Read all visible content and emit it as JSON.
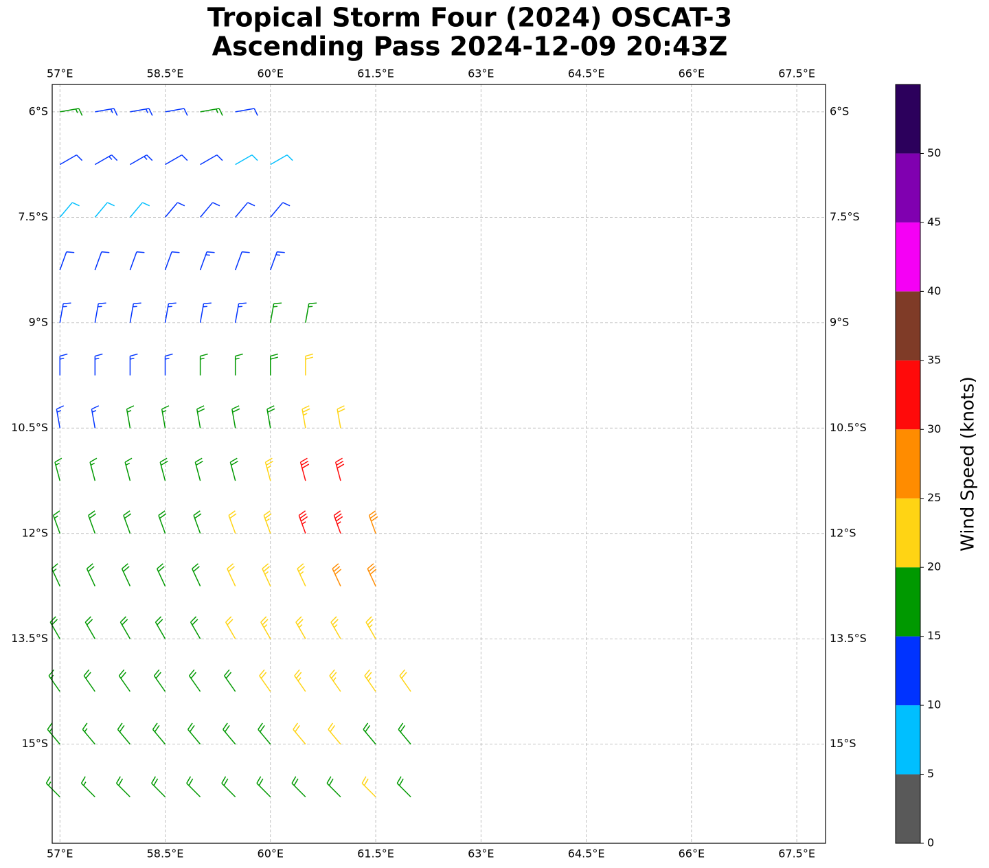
{
  "chart_data": {
    "type": "barbs",
    "title_lines": [
      "Tropical Storm Four (2024) OSCAT-3",
      "Ascending Pass 2024-12-09 20:43Z"
    ],
    "xlim": [
      56.89,
      67.91
    ],
    "ylim": [
      -16.41,
      -5.61
    ],
    "xticks": [
      {
        "value": 57,
        "label": "57°E"
      },
      {
        "value": 58.5,
        "label": "58.5°E"
      },
      {
        "value": 60,
        "label": "60°E"
      },
      {
        "value": 61.5,
        "label": "61.5°E"
      },
      {
        "value": 63,
        "label": "63°E"
      },
      {
        "value": 64.5,
        "label": "64.5°E"
      },
      {
        "value": 66,
        "label": "66°E"
      },
      {
        "value": 67.5,
        "label": "67.5°E"
      }
    ],
    "yticks": [
      {
        "value": -6,
        "label": "6°S"
      },
      {
        "value": -7.5,
        "label": "7.5°S"
      },
      {
        "value": -9,
        "label": "9°S"
      },
      {
        "value": -10.5,
        "label": "10.5°S"
      },
      {
        "value": -12,
        "label": "12°S"
      },
      {
        "value": -13.5,
        "label": "13.5°S"
      },
      {
        "value": -15,
        "label": "15°S"
      }
    ],
    "grid": true,
    "colorbar": {
      "label": "Wind Speed (knots)",
      "bounds": [
        0,
        5,
        10,
        15,
        20,
        25,
        30,
        35,
        40,
        45,
        50,
        55
      ],
      "colors": [
        "#595959",
        "#00bfff",
        "#0033ff",
        "#009900",
        "#ffd414",
        "#ff8c00",
        "#ff0a0a",
        "#7f3b27",
        "#f500f5",
        "#8000b0",
        "#2c005c"
      ],
      "ticks": [
        0,
        5,
        10,
        15,
        20,
        25,
        30,
        35,
        40,
        45,
        50
      ]
    },
    "barbs": [
      {
        "lat": -6,
        "lon": [
          57,
          57.5,
          58,
          58.5,
          59,
          59.5
        ],
        "speed": [
          17,
          13,
          13,
          12,
          17,
          11
        ],
        "direction": [
          80,
          80,
          80,
          80,
          80,
          80
        ]
      },
      {
        "lat": -6.75,
        "lon": [
          57,
          57.5,
          58,
          58.5,
          59,
          59.5,
          60
        ],
        "speed": [
          12,
          13,
          13,
          12,
          11,
          8,
          8
        ],
        "direction": [
          60,
          60,
          60,
          60,
          60,
          60,
          60
        ]
      },
      {
        "lat": -7.5,
        "lon": [
          57,
          57.5,
          58,
          58.5,
          59,
          59.5,
          60
        ],
        "speed": [
          8,
          8,
          8,
          12,
          12,
          11,
          12
        ],
        "direction": [
          40,
          40,
          40,
          40,
          40,
          40,
          40
        ]
      },
      {
        "lat": -8.25,
        "lon": [
          57,
          57.5,
          58,
          58.5,
          59,
          59.5,
          60
        ],
        "speed": [
          12,
          12,
          12,
          12,
          13,
          12,
          13
        ],
        "direction": [
          20,
          20,
          20,
          20,
          20,
          20,
          20
        ]
      },
      {
        "lat": -9,
        "lon": [
          57,
          57.5,
          58,
          58.5,
          59,
          59.5,
          60,
          60.5
        ],
        "speed": [
          13,
          13,
          13,
          13,
          14,
          14,
          17,
          17
        ],
        "direction": [
          10,
          10,
          10,
          10,
          10,
          10,
          10,
          10
        ]
      },
      {
        "lat": -9.75,
        "lon": [
          57,
          57.5,
          58,
          58.5,
          59,
          59.5,
          60,
          60.5
        ],
        "speed": [
          14,
          14,
          14,
          13,
          16,
          17,
          18,
          22
        ],
        "direction": [
          0,
          0,
          0,
          0,
          0,
          0,
          0,
          0
        ]
      },
      {
        "lat": -10.5,
        "lon": [
          57,
          57.5,
          58,
          58.5,
          59,
          59.5,
          60,
          60.5,
          61
        ],
        "speed": [
          13,
          13,
          17,
          17,
          18,
          18,
          19,
          23,
          22
        ],
        "direction": [
          350,
          350,
          350,
          350,
          350,
          350,
          350,
          350,
          350
        ]
      },
      {
        "lat": -11.25,
        "lon": [
          57,
          57.5,
          58,
          58.5,
          59,
          59.5,
          60,
          60.5,
          61
        ],
        "speed": [
          16,
          17,
          17,
          18,
          18,
          19,
          23,
          32,
          31
        ],
        "direction": [
          345,
          345,
          345,
          345,
          345,
          345,
          345,
          345,
          345
        ]
      },
      {
        "lat": -12,
        "lon": [
          57,
          57.5,
          58,
          58.5,
          59,
          59.5,
          60,
          60.5,
          61,
          61.5
        ],
        "speed": [
          17,
          18,
          18,
          18,
          19,
          22,
          24,
          33,
          33,
          28
        ],
        "direction": [
          340,
          340,
          340,
          340,
          340,
          340,
          340,
          340,
          340,
          340
        ]
      },
      {
        "lat": -12.75,
        "lon": [
          57,
          57.5,
          58,
          58.5,
          59,
          59.5,
          60,
          60.5,
          61,
          61.5
        ],
        "speed": [
          17,
          18,
          18,
          18,
          19,
          22,
          23,
          24,
          28,
          28
        ],
        "direction": [
          335,
          335,
          335,
          335,
          335,
          335,
          335,
          335,
          335,
          335
        ]
      },
      {
        "lat": -13.5,
        "lon": [
          57,
          57.5,
          58,
          58.5,
          59,
          59.5,
          60,
          60.5,
          61,
          61.5
        ],
        "speed": [
          18,
          18,
          18,
          18,
          19,
          21,
          23,
          23,
          23,
          24
        ],
        "direction": [
          330,
          330,
          330,
          330,
          330,
          330,
          330,
          330,
          330,
          330
        ]
      },
      {
        "lat": -14.25,
        "lon": [
          57,
          57.5,
          58,
          58.5,
          59,
          59.5,
          60,
          60.5,
          61,
          61.5,
          62
        ],
        "speed": [
          17,
          18,
          18,
          18,
          18,
          18,
          22,
          23,
          23,
          23,
          22
        ],
        "direction": [
          325,
          325,
          325,
          325,
          325,
          325,
          325,
          325,
          325,
          325,
          325
        ]
      },
      {
        "lat": -15,
        "lon": [
          57,
          57.5,
          58,
          58.5,
          59,
          59.5,
          60,
          60.5,
          61,
          61.5,
          62
        ],
        "speed": [
          17,
          17,
          18,
          18,
          18,
          18,
          18,
          21,
          22,
          18,
          18
        ],
        "direction": [
          320,
          320,
          320,
          320,
          320,
          320,
          320,
          320,
          320,
          320,
          320
        ]
      },
      {
        "lat": -15.75,
        "lon": [
          57,
          57.5,
          58,
          58.5,
          59,
          59.5,
          60,
          60.5,
          61,
          61.5,
          62
        ],
        "speed": [
          17,
          17,
          18,
          18,
          18,
          18,
          18,
          18,
          19,
          22,
          18
        ],
        "direction": [
          315,
          315,
          315,
          315,
          315,
          315,
          315,
          315,
          315,
          315,
          315
        ]
      }
    ]
  }
}
